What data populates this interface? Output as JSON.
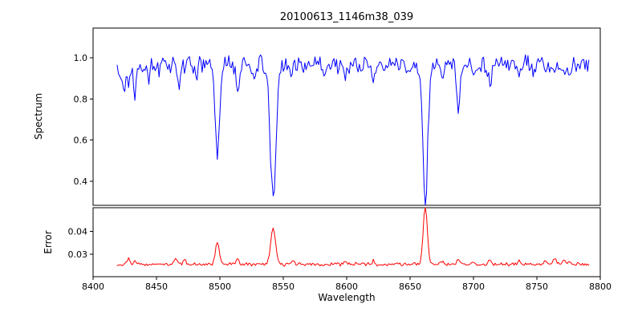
{
  "chart_data": {
    "type": "line",
    "title": "20100613_1146m38_039",
    "xlabel": "Wavelength",
    "xlim": [
      8400,
      8800
    ],
    "x_range": [
      8419,
      8791
    ],
    "x_step": 1,
    "grid": false,
    "legend": "none",
    "xticks": {
      "values": [
        8400,
        8450,
        8500,
        8550,
        8600,
        8650,
        8700,
        8750,
        8800
      ],
      "labels": [
        "8400",
        "8450",
        "8500",
        "8550",
        "8600",
        "8650",
        "8700",
        "8750",
        "8800"
      ]
    },
    "panels": [
      {
        "name": "spectrum",
        "ylabel": "Spectrum",
        "color": "#0000ff",
        "ylim": [
          0.282,
          1.145
        ],
        "yticks": {
          "values": [
            0.4,
            0.6,
            0.8,
            1.0
          ],
          "labels": [
            "0.4",
            "0.6",
            "0.8",
            "1.0"
          ]
        },
        "baseline": 0.968,
        "noise_amplitude": 0.05,
        "absorption_lines": [
          {
            "center": 8424,
            "depth": 0.14,
            "width": 1.3
          },
          {
            "center": 8428,
            "depth": 0.1,
            "width": 1.0
          },
          {
            "center": 8433,
            "depth": 0.13,
            "width": 1.1
          },
          {
            "center": 8444,
            "depth": 0.06,
            "width": 1.0
          },
          {
            "center": 8452,
            "depth": 0.05,
            "width": 1.0
          },
          {
            "center": 8468,
            "depth": 0.1,
            "width": 1.2
          },
          {
            "center": 8482,
            "depth": 0.05,
            "width": 1.0
          },
          {
            "center": 8498,
            "depth": 0.46,
            "width": 1.7
          },
          {
            "center": 8514,
            "depth": 0.14,
            "width": 1.2
          },
          {
            "center": 8527,
            "depth": 0.06,
            "width": 1.0
          },
          {
            "center": 8542,
            "depth": 0.66,
            "width": 2.3
          },
          {
            "center": 8556,
            "depth": 0.05,
            "width": 1.0
          },
          {
            "center": 8582,
            "depth": 0.05,
            "width": 1.0
          },
          {
            "center": 8599,
            "depth": 0.07,
            "width": 1.0
          },
          {
            "center": 8611,
            "depth": 0.05,
            "width": 1.0
          },
          {
            "center": 8621,
            "depth": 0.09,
            "width": 1.2
          },
          {
            "center": 8648,
            "depth": 0.05,
            "width": 1.0
          },
          {
            "center": 8662,
            "depth": 0.68,
            "width": 1.9
          },
          {
            "center": 8675,
            "depth": 0.07,
            "width": 1.0
          },
          {
            "center": 8688,
            "depth": 0.21,
            "width": 1.4
          },
          {
            "center": 8700,
            "depth": 0.06,
            "width": 1.0
          },
          {
            "center": 8713,
            "depth": 0.11,
            "width": 1.2
          },
          {
            "center": 8736,
            "depth": 0.07,
            "width": 1.0
          },
          {
            "center": 8747,
            "depth": 0.05,
            "width": 1.0
          },
          {
            "center": 8757,
            "depth": 0.05,
            "width": 1.0
          },
          {
            "center": 8764,
            "depth": 0.06,
            "width": 1.1
          },
          {
            "center": 8771,
            "depth": 0.05,
            "width": 1.0
          },
          {
            "center": 8776,
            "depth": 0.05,
            "width": 1.0
          }
        ]
      },
      {
        "name": "error",
        "ylabel": "Error",
        "color": "#ff0000",
        "ylim": [
          0.02,
          0.0505
        ],
        "yticks": {
          "values": [
            0.03,
            0.04
          ],
          "labels": [
            "0.03",
            "0.04"
          ]
        },
        "baseline": 0.0255,
        "noise_amplitude": 0.0009,
        "peaks": [
          {
            "center": 8428,
            "amp": 0.0022,
            "width": 1.2
          },
          {
            "center": 8433,
            "amp": 0.002,
            "width": 1.0
          },
          {
            "center": 8465,
            "amp": 0.0025,
            "width": 1.2
          },
          {
            "center": 8472,
            "amp": 0.002,
            "width": 1.0
          },
          {
            "center": 8498,
            "amp": 0.0095,
            "width": 1.5
          },
          {
            "center": 8514,
            "amp": 0.002,
            "width": 1.2
          },
          {
            "center": 8542,
            "amp": 0.0165,
            "width": 1.9
          },
          {
            "center": 8558,
            "amp": 0.0015,
            "width": 1.0
          },
          {
            "center": 8599,
            "amp": 0.0012,
            "width": 1.0
          },
          {
            "center": 8621,
            "amp": 0.0015,
            "width": 1.0
          },
          {
            "center": 8662,
            "amp": 0.0265,
            "width": 1.6
          },
          {
            "center": 8675,
            "amp": 0.0015,
            "width": 1.0
          },
          {
            "center": 8688,
            "amp": 0.0022,
            "width": 1.3
          },
          {
            "center": 8700,
            "amp": 0.0012,
            "width": 1.0
          },
          {
            "center": 8713,
            "amp": 0.0015,
            "width": 1.2
          },
          {
            "center": 8736,
            "amp": 0.0012,
            "width": 1.0
          },
          {
            "center": 8757,
            "amp": 0.0015,
            "width": 1.0
          },
          {
            "center": 8764,
            "amp": 0.0028,
            "width": 1.2
          },
          {
            "center": 8771,
            "amp": 0.002,
            "width": 1.0
          },
          {
            "center": 8776,
            "amp": 0.0012,
            "width": 1.0
          }
        ]
      }
    ]
  }
}
